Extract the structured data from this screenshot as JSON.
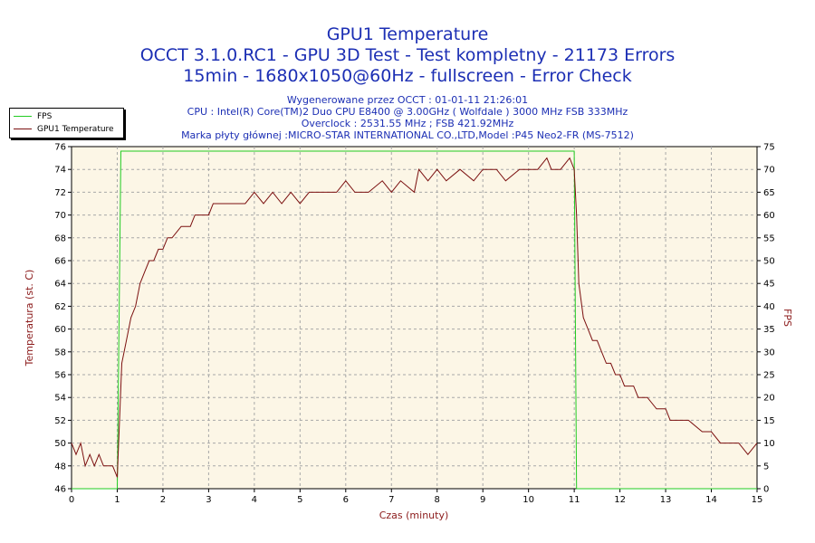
{
  "title": {
    "line1": "GPU1 Temperature",
    "line2": "OCCT 3.1.0.RC1 - GPU 3D Test - Test kompletny - 21173 Errors",
    "line3": "15min - 1680x1050@60Hz - fullscreen - Error Check"
  },
  "info": {
    "generated": "Wygenerowane przez OCCT : 01-01-11 21:26:01",
    "cpu": "CPU : Intel(R) Core(TM)2 Duo CPU E8400 @ 3.00GHz ( Wolfdale ) 3000 MHz FSB 333MHz",
    "overclock": "Overclock : 2531.55 MHz ; FSB 421.92MHz",
    "motherboard": "Marka płyty głównej :MICRO-STAR INTERNATIONAL CO.,LTD,Model :P45 Neo2-FR (MS-7512)"
  },
  "chart_data": {
    "type": "line",
    "xlabel": "Czas (minuty)",
    "ylabel_left": "Temperatura (st. C)",
    "ylabel_right": "FPS",
    "x_range": [
      0,
      15
    ],
    "ylim_left": [
      46,
      76
    ],
    "ylim_right": [
      0,
      75
    ],
    "x_ticks": [
      "0",
      "1",
      "2",
      "3",
      "4",
      "5",
      "6",
      "7",
      "8",
      "9",
      "10",
      "11",
      "12",
      "13",
      "14",
      "15"
    ],
    "y_ticks_left": [
      "46",
      "48",
      "50",
      "52",
      "54",
      "56",
      "58",
      "60",
      "62",
      "64",
      "66",
      "68",
      "70",
      "72",
      "74",
      "76"
    ],
    "y_ticks_right": [
      "0",
      "5",
      "10",
      "15",
      "20",
      "25",
      "30",
      "35",
      "40",
      "45",
      "50",
      "55",
      "60",
      "65",
      "70",
      "75"
    ],
    "grid": true,
    "legend_position": "top-left",
    "series": [
      {
        "name": "FPS",
        "axis": "right",
        "color": "#22cc22",
        "points": [
          [
            0,
            0
          ],
          [
            1.0,
            0
          ],
          [
            1.08,
            74
          ],
          [
            11.0,
            74
          ],
          [
            11.05,
            0
          ],
          [
            15,
            0
          ]
        ]
      },
      {
        "name": "GPU1 Temperature",
        "axis": "left",
        "color": "#7b1010",
        "points": [
          [
            0,
            50
          ],
          [
            0.1,
            49
          ],
          [
            0.2,
            50
          ],
          [
            0.3,
            48
          ],
          [
            0.4,
            49
          ],
          [
            0.5,
            48
          ],
          [
            0.6,
            49
          ],
          [
            0.7,
            48
          ],
          [
            0.9,
            48
          ],
          [
            1.0,
            47
          ],
          [
            1.05,
            52
          ],
          [
            1.1,
            57
          ],
          [
            1.2,
            59
          ],
          [
            1.3,
            61
          ],
          [
            1.4,
            62
          ],
          [
            1.5,
            64
          ],
          [
            1.6,
            65
          ],
          [
            1.7,
            66
          ],
          [
            1.8,
            66
          ],
          [
            1.9,
            67
          ],
          [
            2.0,
            67
          ],
          [
            2.1,
            68
          ],
          [
            2.2,
            68
          ],
          [
            2.4,
            69
          ],
          [
            2.6,
            69
          ],
          [
            2.7,
            70
          ],
          [
            2.9,
            70
          ],
          [
            3.0,
            70
          ],
          [
            3.1,
            71
          ],
          [
            3.3,
            71
          ],
          [
            3.5,
            71
          ],
          [
            3.8,
            71
          ],
          [
            4.0,
            72
          ],
          [
            4.2,
            71
          ],
          [
            4.4,
            72
          ],
          [
            4.6,
            71
          ],
          [
            4.8,
            72
          ],
          [
            5.0,
            71
          ],
          [
            5.2,
            72
          ],
          [
            5.5,
            72
          ],
          [
            5.8,
            72
          ],
          [
            6.0,
            73
          ],
          [
            6.2,
            72
          ],
          [
            6.5,
            72
          ],
          [
            6.8,
            73
          ],
          [
            7.0,
            72
          ],
          [
            7.2,
            73
          ],
          [
            7.5,
            72
          ],
          [
            7.6,
            74
          ],
          [
            7.8,
            73
          ],
          [
            8.0,
            74
          ],
          [
            8.2,
            73
          ],
          [
            8.5,
            74
          ],
          [
            8.8,
            73
          ],
          [
            9.0,
            74
          ],
          [
            9.3,
            74
          ],
          [
            9.5,
            73
          ],
          [
            9.8,
            74
          ],
          [
            10.0,
            74
          ],
          [
            10.2,
            74
          ],
          [
            10.4,
            75
          ],
          [
            10.5,
            74
          ],
          [
            10.7,
            74
          ],
          [
            10.9,
            75
          ],
          [
            11.0,
            74
          ],
          [
            11.05,
            70
          ],
          [
            11.1,
            64
          ],
          [
            11.2,
            61
          ],
          [
            11.3,
            60
          ],
          [
            11.4,
            59
          ],
          [
            11.5,
            59
          ],
          [
            11.6,
            58
          ],
          [
            11.7,
            57
          ],
          [
            11.8,
            57
          ],
          [
            11.9,
            56
          ],
          [
            12.0,
            56
          ],
          [
            12.1,
            55
          ],
          [
            12.3,
            55
          ],
          [
            12.4,
            54
          ],
          [
            12.6,
            54
          ],
          [
            12.8,
            53
          ],
          [
            13.0,
            53
          ],
          [
            13.1,
            52
          ],
          [
            13.3,
            52
          ],
          [
            13.5,
            52
          ],
          [
            13.8,
            51
          ],
          [
            14.0,
            51
          ],
          [
            14.2,
            50
          ],
          [
            14.4,
            50
          ],
          [
            14.6,
            50
          ],
          [
            14.8,
            49
          ],
          [
            15.0,
            50
          ]
        ]
      }
    ]
  }
}
